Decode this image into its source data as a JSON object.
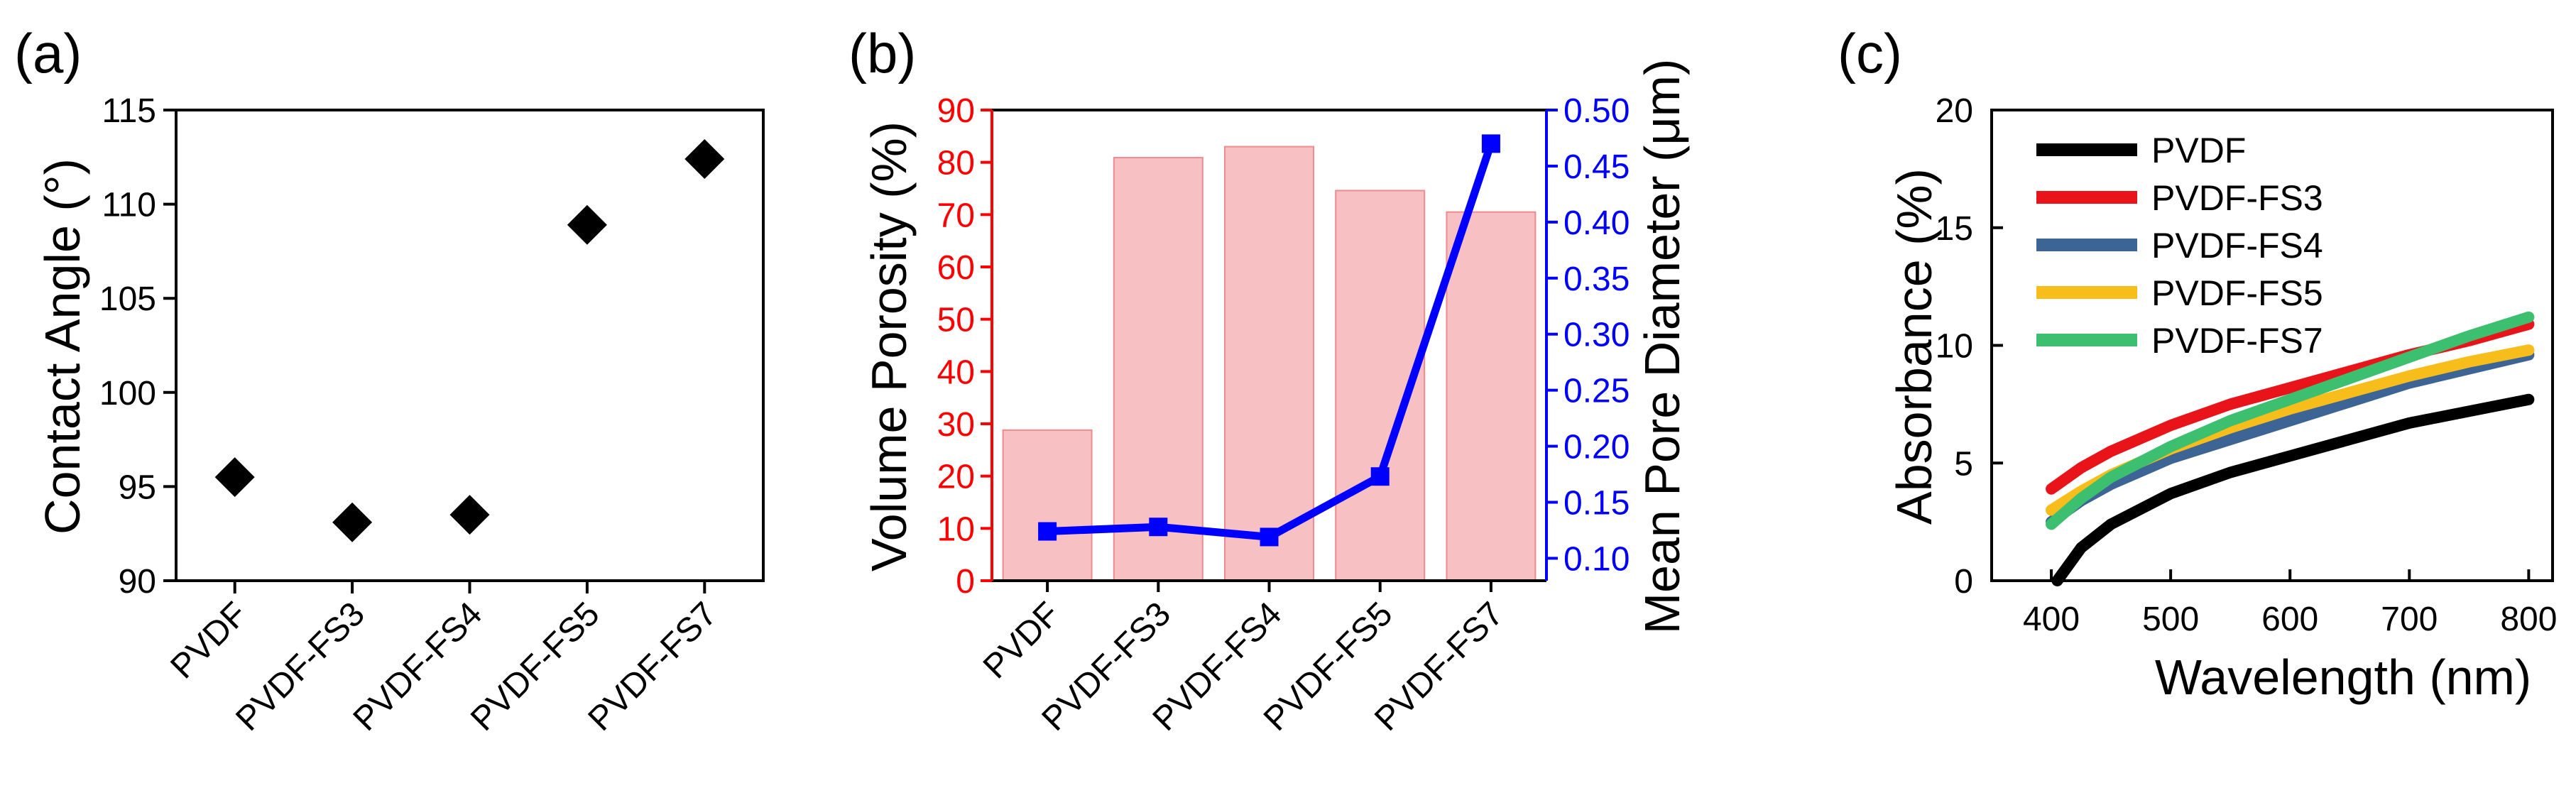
{
  "panel_titles": {
    "a": "(a)",
    "b": "(b)",
    "c": "(c)"
  },
  "colors": {
    "black": "#000000",
    "red": "#ff0000",
    "blue": "#0000ff",
    "bar_fill": "#f7c0c2",
    "bar_stroke": "#f08a8e",
    "series_red": "#e8141a",
    "series_steel": "#3c6495",
    "series_gold": "#f7bd1a",
    "series_green": "#3cbf6e"
  },
  "chart_data": [
    {
      "id": "a",
      "type": "scatter",
      "title": "(a)",
      "xlabel": "",
      "ylabel": "Contact Angle (°)",
      "categories": [
        "PVDF",
        "PVDF-FS3",
        "PVDF-FS4",
        "PVDF-FS5",
        "PVDF-FS7"
      ],
      "values": [
        95.5,
        93.1,
        93.5,
        108.9,
        112.4
      ],
      "ylim": [
        90,
        115
      ],
      "yticks": [
        "90",
        "95",
        "100",
        "105",
        "110",
        "115"
      ],
      "marker": "diamond"
    },
    {
      "id": "b",
      "type": "bar",
      "title": "(b)",
      "xlabel": "",
      "categories": [
        "PVDF",
        "PVDF-FS3",
        "PVDF-FS4",
        "PVDF-FS5",
        "PVDF-FS7"
      ],
      "ylabel_left": "Volume Porosity (%)",
      "ylim_left": [
        0,
        90
      ],
      "yticks_left": [
        "0",
        "10",
        "20",
        "30",
        "40",
        "50",
        "60",
        "70",
        "80",
        "90"
      ],
      "ylabel_right": "Mean Pore Diameter (μm)",
      "ylim_right": [
        0.08,
        0.5
      ],
      "yticks_right": [
        "0.10",
        "0.15",
        "0.20",
        "0.25",
        "0.30",
        "0.35",
        "0.40",
        "0.45",
        "0.50"
      ],
      "series": [
        {
          "name": "Volume Porosity",
          "kind": "bar",
          "axis": "left",
          "values": [
            28.8,
            80.9,
            83.0,
            74.6,
            70.5
          ]
        },
        {
          "name": "Mean Pore Diameter",
          "kind": "line",
          "axis": "right",
          "values": [
            0.124,
            0.128,
            0.119,
            0.173,
            0.47
          ]
        }
      ]
    },
    {
      "id": "c",
      "type": "line",
      "title": "(c)",
      "xlabel": "Wavelength (nm)",
      "ylabel": "Absorbance (%)",
      "xlim": [
        350,
        820
      ],
      "ylim": [
        0,
        20
      ],
      "xticks": [
        "400",
        "500",
        "600",
        "700",
        "800"
      ],
      "yticks": [
        "0",
        "5",
        "10",
        "15",
        "20"
      ],
      "legend_position": "top-left",
      "series": [
        {
          "name": "PVDF",
          "x": [
            405,
            425,
            450,
            500,
            550,
            600,
            650,
            700,
            750,
            800
          ],
          "values": [
            0.0,
            1.4,
            2.4,
            3.7,
            4.6,
            5.3,
            6.0,
            6.7,
            7.2,
            7.7
          ]
        },
        {
          "name": "PVDF-FS3",
          "x": [
            400,
            425,
            450,
            500,
            550,
            600,
            650,
            700,
            750,
            800
          ],
          "values": [
            3.9,
            4.8,
            5.5,
            6.6,
            7.5,
            8.2,
            8.9,
            9.6,
            10.2,
            10.9
          ]
        },
        {
          "name": "PVDF-FS4",
          "x": [
            400,
            425,
            450,
            500,
            550,
            600,
            650,
            700,
            750,
            800
          ],
          "values": [
            2.5,
            3.4,
            4.1,
            5.2,
            6.0,
            6.8,
            7.6,
            8.4,
            9.0,
            9.6
          ]
        },
        {
          "name": "PVDF-FS5",
          "x": [
            400,
            425,
            450,
            500,
            550,
            600,
            650,
            700,
            750,
            800
          ],
          "values": [
            3.0,
            3.8,
            4.5,
            5.6,
            6.5,
            7.3,
            8.0,
            8.7,
            9.3,
            9.8
          ]
        },
        {
          "name": "PVDF-FS7",
          "x": [
            400,
            425,
            450,
            500,
            550,
            600,
            650,
            700,
            750,
            800
          ],
          "values": [
            2.4,
            3.5,
            4.4,
            5.7,
            6.8,
            7.7,
            8.6,
            9.5,
            10.4,
            11.2
          ]
        }
      ]
    }
  ]
}
